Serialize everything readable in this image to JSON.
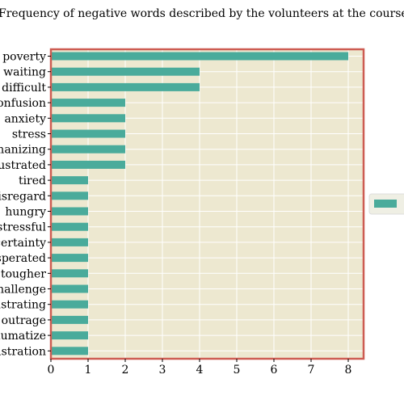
{
  "chart_data": {
    "type": "bar",
    "orientation": "horizontal",
    "title": "Frequency of negative words described by the volunteers at the course",
    "xlabel": "",
    "ylabel": "",
    "categories": [
      "poverty",
      "waiting",
      "difficult",
      "confusion",
      "anxiety",
      "stress",
      "dehumanizing",
      "frustrated",
      "tired",
      "disregard",
      "hungry",
      "stressful",
      "uncertainty",
      "exasperated",
      "tougher",
      "challenge",
      "frustrating",
      "outrage",
      "traumatize",
      "frustration"
    ],
    "series": [
      {
        "name": "",
        "values": [
          8,
          4,
          4,
          2,
          2,
          2,
          2,
          2,
          1,
          1,
          1,
          1,
          1,
          1,
          1,
          1,
          1,
          1,
          1,
          1
        ]
      }
    ],
    "xlim": [
      0,
      8.4
    ],
    "xticks": [
      0,
      1,
      2,
      3,
      4,
      5,
      6,
      7,
      8
    ],
    "grid": true,
    "legend_position": "right",
    "colors": {
      "bar": "#4aab9b",
      "plot_background": "#ede8d0",
      "frame": "#cd5c52",
      "grid": "#ffffff"
    }
  }
}
